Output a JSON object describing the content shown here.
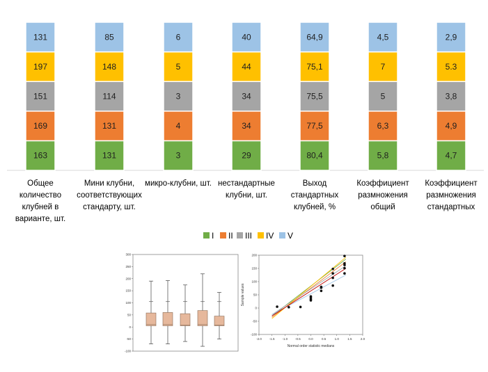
{
  "chart_data": [
    {
      "type": "bar",
      "stacked": true,
      "categories": [
        [
          "Общее",
          "количество",
          "клубней в",
          "варианте, шт."
        ],
        [
          "Мини клубни,",
          "соответствующих",
          "стандарту, шт."
        ],
        [
          "микро-клубни, шт."
        ],
        [
          "нестандартные",
          "клубни, шт."
        ],
        [
          "Выход",
          "стандартных",
          "клубней, %"
        ],
        [
          "Коэффициент",
          "размножения",
          "общий"
        ],
        [
          "Коэффициент",
          "размножения",
          "стандартных"
        ]
      ],
      "series": [
        {
          "name": "I",
          "color": "#70ad47",
          "values": [
            "163",
            "131",
            "3",
            "29",
            "80,4",
            "5,8",
            "4,7"
          ]
        },
        {
          "name": "II",
          "color": "#ed7d31",
          "values": [
            "169",
            "131",
            "4",
            "34",
            "77,5",
            "6,3",
            "4,9"
          ]
        },
        {
          "name": "III",
          "color": "#a5a5a5",
          "values": [
            "151",
            "114",
            "3",
            "34",
            "75,5",
            "5",
            "3,8"
          ]
        },
        {
          "name": "IV",
          "color": "#ffc000",
          "values": [
            "197",
            "148",
            "5",
            "44",
            "75,1",
            "7",
            "5.3"
          ]
        },
        {
          "name": "V",
          "color": "#9dc3e6",
          "values": [
            "131",
            "85",
            "6",
            "40",
            "64,9",
            "4,5",
            "2,9"
          ]
        }
      ],
      "grid": false,
      "legend_position": "bottom"
    },
    {
      "type": "box",
      "ylim": [
        -100,
        300
      ],
      "yticks": [
        "300",
        "250",
        "200",
        "150",
        "100",
        "50",
        "0",
        "-50",
        "-100"
      ],
      "boxes": [
        {
          "whisker_low": -70,
          "q1": 5,
          "median": 10,
          "q3": 58,
          "whisker_high": 190
        },
        {
          "whisker_low": -70,
          "q1": 5,
          "median": 10,
          "q3": 60,
          "whisker_high": 192
        },
        {
          "whisker_low": -60,
          "q1": 5,
          "median": 8,
          "q3": 55,
          "whisker_high": 174
        },
        {
          "whisker_low": -80,
          "q1": 5,
          "median": 10,
          "q3": 68,
          "whisker_high": 220
        },
        {
          "whisker_low": -50,
          "q1": 5,
          "median": 8,
          "q3": 45,
          "whisker_high": 143
        }
      ]
    },
    {
      "type": "scatter",
      "xlabel": "Normal order statistic medians",
      "ylabel": "Sample values",
      "xlim": [
        -2,
        2
      ],
      "ylim": [
        -100,
        200
      ],
      "xticks": [
        "-2.0",
        "-1.5",
        "-1.0",
        "-0.5",
        "0.0",
        "0.5",
        "1.0",
        "1.5",
        "2.0"
      ],
      "yticks": [
        "200",
        "150",
        "100",
        "50",
        "0",
        "-50",
        "-100"
      ],
      "points": [
        {
          "x": -1.3,
          "y": 5
        },
        {
          "x": -0.85,
          "y": 3
        },
        {
          "x": -0.4,
          "y": 4
        },
        {
          "x": 0,
          "y": 29
        },
        {
          "x": 0,
          "y": 34
        },
        {
          "x": 0,
          "y": 40
        },
        {
          "x": 0,
          "y": 44
        },
        {
          "x": 0.4,
          "y": 65
        },
        {
          "x": 0.4,
          "y": 77
        },
        {
          "x": 0.4,
          "y": 80
        },
        {
          "x": 0.85,
          "y": 131
        },
        {
          "x": 0.85,
          "y": 148
        },
        {
          "x": 0.85,
          "y": 114
        },
        {
          "x": 0.85,
          "y": 85
        },
        {
          "x": 1.3,
          "y": 163
        },
        {
          "x": 1.3,
          "y": 169
        },
        {
          "x": 1.3,
          "y": 151
        },
        {
          "x": 1.3,
          "y": 197
        },
        {
          "x": 1.3,
          "y": 131
        }
      ],
      "lines": [
        {
          "color": "#70ad47",
          "x1": -1.5,
          "y1": -30,
          "x2": 1.35,
          "y2": 185
        },
        {
          "color": "#ed7d31",
          "x1": -1.5,
          "y1": -35,
          "x2": 1.35,
          "y2": 175
        },
        {
          "color": "#a5a5a5",
          "x1": -1.5,
          "y1": -25,
          "x2": 1.35,
          "y2": 160
        },
        {
          "color": "#ffc000",
          "x1": -1.5,
          "y1": -40,
          "x2": 1.35,
          "y2": 192
        },
        {
          "color": "#9dc3e6",
          "x1": -1.5,
          "y1": -25,
          "x2": 1.35,
          "y2": 125
        },
        {
          "color": "#c00000",
          "x1": -1.5,
          "y1": -30,
          "x2": 1.35,
          "y2": 150
        }
      ]
    }
  ]
}
